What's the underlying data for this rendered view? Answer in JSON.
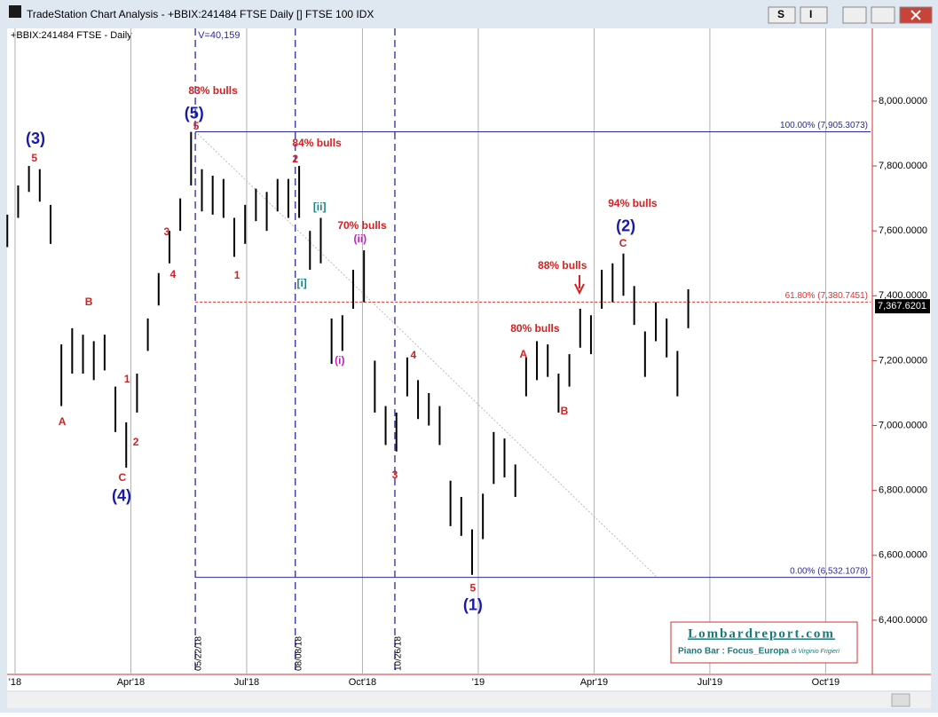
{
  "window": {
    "title": "TradeStation Chart Analysis - +BBIX:241484 FTSE Daily [] FTSE 100 IDX",
    "buttons": [
      "S",
      "I"
    ]
  },
  "chart_data": {
    "type": "ohlc",
    "symbol_label": "+BBIX:241484 FTSE - Daily",
    "volume_label": "V=40,159",
    "color": "#000000",
    "x": [
      -0.2,
      0.08,
      0.36,
      0.64,
      0.92,
      1.2,
      1.48,
      1.76,
      2.04,
      2.32,
      2.6,
      2.88,
      3.16,
      3.44,
      3.72,
      4.0,
      4.28,
      4.56,
      4.84,
      5.12,
      5.4,
      5.68,
      5.96,
      6.24,
      6.52,
      6.8,
      7.08,
      7.36,
      7.64,
      7.92,
      8.2,
      8.48,
      8.76,
      9.04,
      9.32,
      9.6,
      9.88,
      10.16,
      10.44,
      10.72,
      11.0,
      11.28,
      11.56,
      11.84,
      12.12,
      12.4,
      12.68,
      12.96,
      13.24,
      13.52,
      13.8,
      14.08,
      14.36,
      14.64,
      14.92,
      15.2,
      15.48,
      15.76,
      16.04,
      16.32,
      16.6,
      16.88,
      17.16,
      17.44
    ],
    "high": [
      7650,
      7740,
      7800,
      7790,
      7680,
      7250,
      7300,
      7280,
      7260,
      7280,
      7120,
      7010,
      7160,
      7330,
      7470,
      7600,
      7700,
      7905,
      7790,
      7770,
      7760,
      7640,
      7680,
      7730,
      7720,
      7760,
      7760,
      7800,
      7600,
      7640,
      7330,
      7340,
      7480,
      7540,
      7200,
      7060,
      7040,
      7210,
      7140,
      7100,
      7060,
      6830,
      6780,
      6680,
      6790,
      6980,
      6960,
      6880,
      7210,
      7260,
      7250,
      7160,
      7220,
      7360,
      7340,
      7480,
      7500,
      7530,
      7430,
      7290,
      7380,
      7330,
      7230,
      7420
    ],
    "low": [
      7550,
      7640,
      7720,
      7690,
      7560,
      7060,
      7160,
      7160,
      7140,
      7170,
      6980,
      6870,
      7040,
      7230,
      7370,
      7500,
      7600,
      7740,
      7660,
      7650,
      7640,
      7520,
      7560,
      7630,
      7600,
      7660,
      7640,
      7640,
      7480,
      7500,
      7190,
      7230,
      7360,
      7380,
      7040,
      6940,
      6920,
      7090,
      7020,
      7000,
      6940,
      6690,
      6660,
      6540,
      6650,
      6820,
      6840,
      6780,
      7090,
      7140,
      7150,
      7040,
      7120,
      7240,
      7220,
      7360,
      7380,
      7400,
      7310,
      7150,
      7260,
      7210,
      7090,
      7300
    ],
    "xlim": [
      -0.16,
      22.14
    ],
    "xticks": [
      {
        "value": 0,
        "label": "'18"
      },
      {
        "value": 3,
        "label": "Apr'18"
      },
      {
        "value": 6,
        "label": "Jul'18"
      },
      {
        "value": 9,
        "label": "Oct'18"
      },
      {
        "value": 12,
        "label": "'19"
      },
      {
        "value": 15,
        "label": "Apr'19"
      },
      {
        "value": 18,
        "label": "Jul'19"
      },
      {
        "value": 21,
        "label": "Oct'19"
      }
    ],
    "ylim": [
      6233,
      8224
    ],
    "yticks": [
      {
        "value": 6400,
        "label": "6,400.0000"
      },
      {
        "value": 6600,
        "label": "6,600.0000"
      },
      {
        "value": 6800,
        "label": "6,800.0000"
      },
      {
        "value": 7000,
        "label": "7,000.0000"
      },
      {
        "value": 7200,
        "label": "7,200.0000"
      },
      {
        "value": 7400,
        "label": "7,400.0000"
      },
      {
        "value": 7600,
        "label": "7,600.0000"
      },
      {
        "value": 7800,
        "label": "7,800.0000"
      },
      {
        "value": 8000,
        "label": "8,000.0000"
      }
    ],
    "grid": true,
    "last_price": {
      "value": 7367.6201,
      "label": "7,367.6201"
    },
    "levels": [
      {
        "value": 7905.3073,
        "label": "100.00% (7,905.3073)",
        "color": "#2a2aa0",
        "dashed": false,
        "start": 4.67
      },
      {
        "value": 7380.7451,
        "label": "61.80% (7,380.7451)",
        "color": "#e03030",
        "dashed": true,
        "start": 4.67
      },
      {
        "value": 6532.1078,
        "label": "0.00% (6,532.1078)",
        "color": "#2a2aa0",
        "dashed": false,
        "start": 4.67
      }
    ],
    "vlines": [
      {
        "x": 4.67,
        "label": "05/22/18"
      },
      {
        "x": 7.26,
        "label": "08/08/18"
      },
      {
        "x": 9.84,
        "label": "10/26/18"
      }
    ],
    "annotations": [
      {
        "text": "(3)",
        "x": 0.53,
        "y": 7882,
        "color": "#1a1aa8",
        "big": true
      },
      {
        "text": "5",
        "x": 0.5,
        "y": 7822,
        "color": "#d42020"
      },
      {
        "text": "A",
        "x": 1.22,
        "y": 7010,
        "color": "#d42020"
      },
      {
        "text": "B",
        "x": 1.91,
        "y": 7379,
        "color": "#d42020"
      },
      {
        "text": "1",
        "x": 2.9,
        "y": 7141,
        "color": "#d42020"
      },
      {
        "text": "2",
        "x": 3.13,
        "y": 6947,
        "color": "#d42020"
      },
      {
        "text": "C",
        "x": 2.78,
        "y": 6838,
        "color": "#d42020"
      },
      {
        "text": "(4)",
        "x": 2.76,
        "y": 6780,
        "color": "#1a1aa8",
        "big": true
      },
      {
        "text": "3",
        "x": 3.93,
        "y": 7595,
        "color": "#d42020"
      },
      {
        "text": "4",
        "x": 4.09,
        "y": 7464,
        "color": "#d42020"
      },
      {
        "text": "83% bulls",
        "x": 5.13,
        "y": 8030,
        "color": "#d42020"
      },
      {
        "text": "(5)",
        "x": 4.64,
        "y": 7959,
        "color": "#1a1aa8",
        "big": true
      },
      {
        "text": "5",
        "x": 4.69,
        "y": 7921,
        "color": "#d42020"
      },
      {
        "text": "84% bulls",
        "x": 7.82,
        "y": 7869,
        "color": "#d42020"
      },
      {
        "text": "2",
        "x": 7.26,
        "y": 7820,
        "color": "#d42020"
      },
      {
        "text": "1",
        "x": 5.75,
        "y": 7461,
        "color": "#d42020"
      },
      {
        "text": "[ii]",
        "x": 7.89,
        "y": 7672,
        "color": "#208080"
      },
      {
        "text": "[i]",
        "x": 7.43,
        "y": 7437,
        "color": "#208080"
      },
      {
        "text": "70% bulls",
        "x": 8.99,
        "y": 7614,
        "color": "#d42020"
      },
      {
        "text": "(ii)",
        "x": 8.94,
        "y": 7573,
        "color": "#c020c0"
      },
      {
        "text": "(i)",
        "x": 8.41,
        "y": 7199,
        "color": "#c020c0"
      },
      {
        "text": "4",
        "x": 10.32,
        "y": 7215,
        "color": "#d42020"
      },
      {
        "text": "3",
        "x": 9.84,
        "y": 6846,
        "color": "#d42020"
      },
      {
        "text": "5",
        "x": 11.86,
        "y": 6498,
        "color": "#d42020"
      },
      {
        "text": "(1)",
        "x": 11.86,
        "y": 6444,
        "color": "#1a1aa8",
        "big": true
      },
      {
        "text": "80% bulls",
        "x": 13.47,
        "y": 7297,
        "color": "#d42020"
      },
      {
        "text": "A",
        "x": 13.17,
        "y": 7218,
        "color": "#d42020"
      },
      {
        "text": "B",
        "x": 14.23,
        "y": 7043,
        "color": "#d42020"
      },
      {
        "text": "88% bulls",
        "x": 14.18,
        "y": 7491,
        "color": "#d42020"
      },
      {
        "text": "94% bulls",
        "x": 16.0,
        "y": 7683,
        "color": "#d42020"
      },
      {
        "text": "(2)",
        "x": 15.82,
        "y": 7612,
        "color": "#1a1aa8",
        "big": true
      },
      {
        "text": "C",
        "x": 15.75,
        "y": 7560,
        "color": "#d42020"
      }
    ]
  },
  "logo": {
    "site": "Lombardreport.com",
    "line": "Piano Bar : Focus_Europa",
    "author": "di Virginio Frigieri"
  }
}
